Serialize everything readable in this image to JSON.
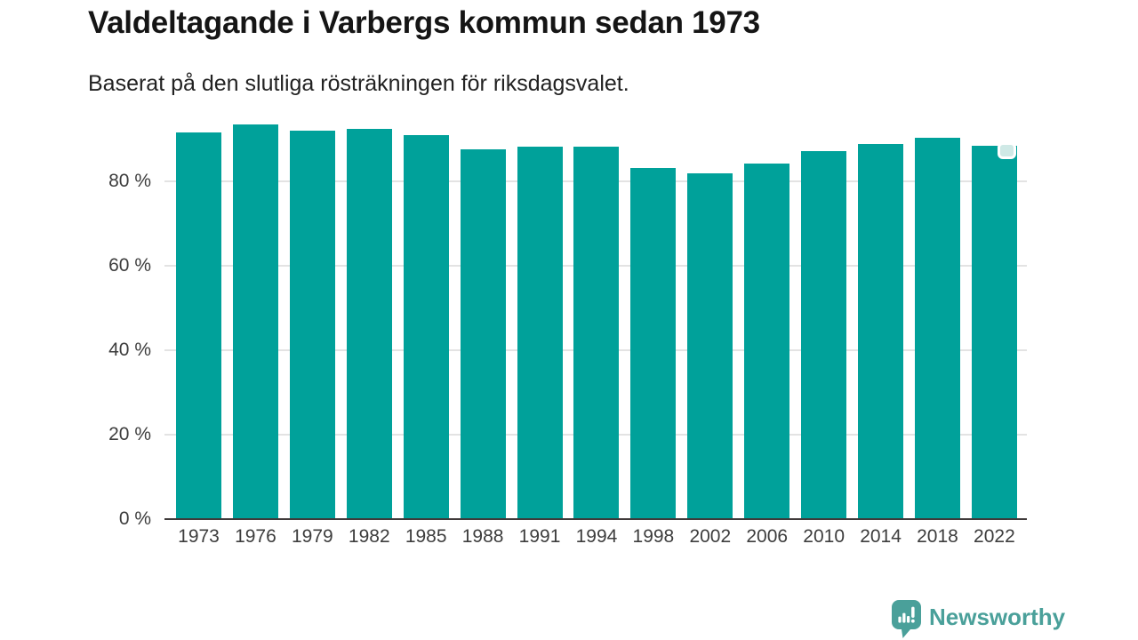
{
  "title": "Valdeltagande i Varbergs kommun sedan 1973",
  "subtitle": "Baserat på den slutliga rösträkningen för riksdagsvalet.",
  "chart_data": {
    "type": "bar",
    "title": "Valdeltagande i Varbergs kommun sedan 1973",
    "subtitle": "Baserat på den slutliga rösträkningen för riksdagsvalet.",
    "categories": [
      "1973",
      "1976",
      "1979",
      "1982",
      "1985",
      "1988",
      "1991",
      "1994",
      "1998",
      "2002",
      "2006",
      "2010",
      "2014",
      "2018",
      "2022"
    ],
    "values": [
      91.5,
      93.5,
      91.9,
      92.5,
      91.0,
      87.5,
      88.3,
      88.3,
      83.2,
      82.0,
      84.3,
      87.2,
      88.9,
      90.4,
      88.5
    ],
    "unit": "%",
    "xlabel": "",
    "ylabel": "",
    "ylim": [
      0,
      100
    ],
    "yticks": [
      {
        "label": "0 %",
        "value": 0
      },
      {
        "label": "20 %",
        "value": 20
      },
      {
        "label": "40 %",
        "value": 40
      },
      {
        "label": "60 %",
        "value": 60
      },
      {
        "label": "80 %",
        "value": 80
      }
    ],
    "grid": "horizontal",
    "legend": "none",
    "colors": {
      "bar": "#00a19a",
      "grid": "#e3e3e3",
      "axis": "#3f3a3a",
      "tick_text": "#3d3d3d"
    },
    "last_bar_marker": {
      "visible": true,
      "fill": "#cfe9e6",
      "border": "#ffffff"
    }
  },
  "branding": {
    "logo_text": "Newsworthy",
    "logo_color": "#4aa09a",
    "logo_icon": "newsworthy-speech-bubble-bar-chart-icon"
  }
}
